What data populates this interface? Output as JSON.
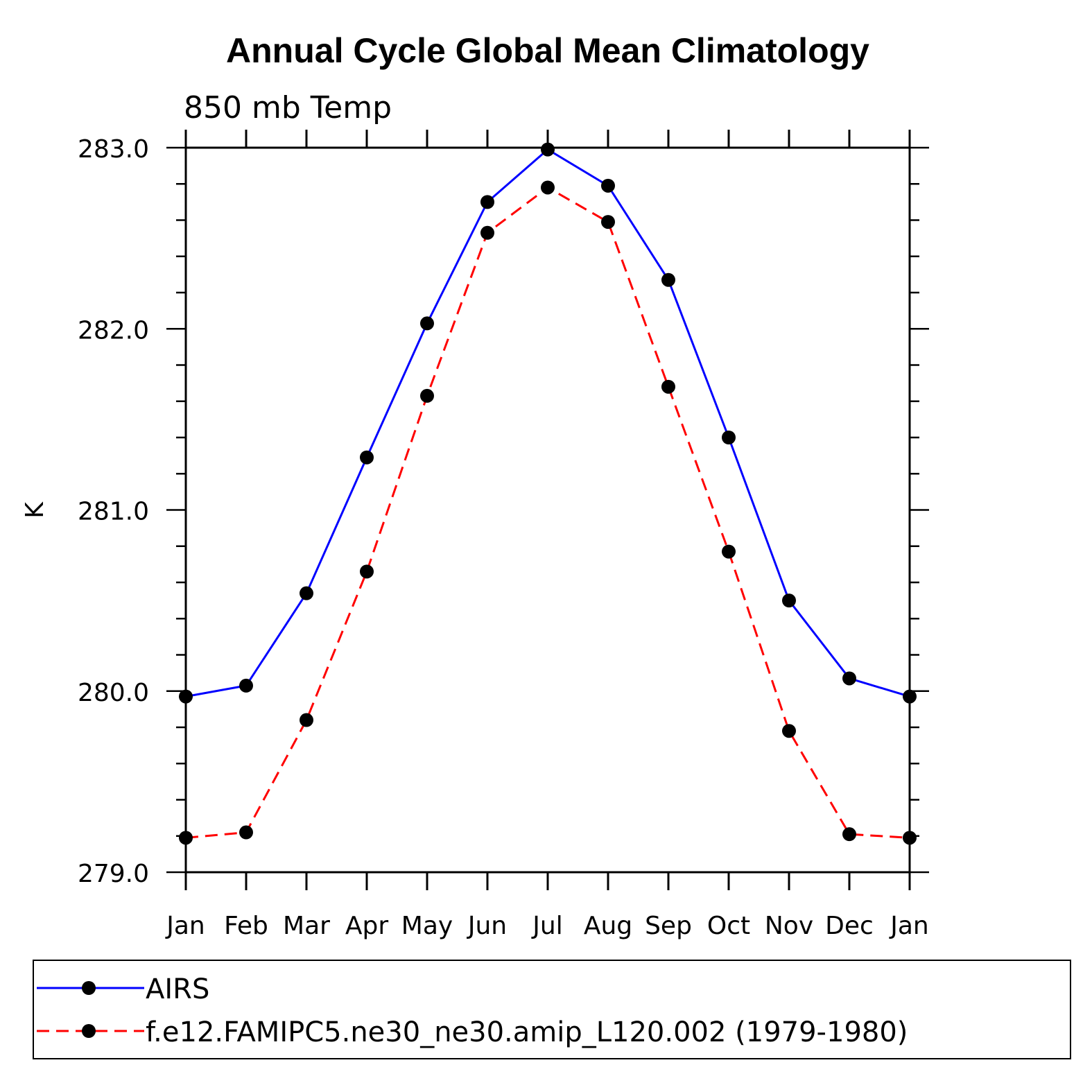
{
  "chart_data": {
    "type": "line",
    "title": "Annual Cycle Global Mean Climatology",
    "subtitle": "850 mb Temp",
    "ylabel": "K",
    "xlabel": "",
    "categories": [
      "Jan",
      "Feb",
      "Mar",
      "Apr",
      "May",
      "Jun",
      "Jul",
      "Aug",
      "Sep",
      "Oct",
      "Nov",
      "Dec",
      "Jan"
    ],
    "ylim": [
      279.0,
      283.0
    ],
    "yticks": [
      "283.0",
      "282.0",
      "281.0",
      "280.0",
      "279.0"
    ],
    "ytick_values": [
      283.0,
      282.0,
      281.0,
      280.0,
      279.0
    ],
    "yminor_step": 0.2,
    "legend_position": "bottom",
    "series": [
      {
        "name": "AIRS",
        "color": "#0000ff",
        "dash": "solid",
        "marker": "filled-circle",
        "values": [
          279.97,
          280.03,
          280.54,
          281.29,
          282.03,
          282.7,
          282.99,
          282.79,
          282.27,
          281.4,
          280.5,
          280.07,
          279.97
        ]
      },
      {
        "name": "f.e12.FAMIPC5.ne30_ne30.amip_L120.002 (1979-1980)",
        "color": "#ff0000",
        "dash": "dashed",
        "marker": "filled-circle",
        "values": [
          279.19,
          279.22,
          279.84,
          280.66,
          281.63,
          282.53,
          282.78,
          282.59,
          281.68,
          280.77,
          279.78,
          279.21,
          279.19
        ]
      }
    ]
  }
}
